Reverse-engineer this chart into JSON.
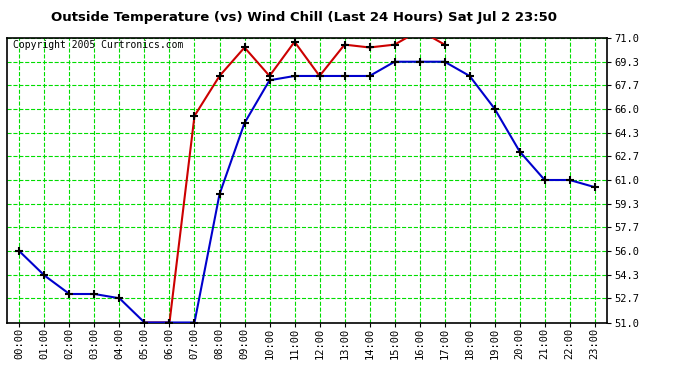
{
  "title": "Outside Temperature (vs) Wind Chill (Last 24 Hours) Sat Jul 2 23:50",
  "copyright": "Copyright 2005 Curtronics.com",
  "x_labels": [
    "00:00",
    "01:00",
    "02:00",
    "03:00",
    "04:00",
    "05:00",
    "06:00",
    "07:00",
    "08:00",
    "09:00",
    "10:00",
    "11:00",
    "12:00",
    "13:00",
    "14:00",
    "15:00",
    "16:00",
    "17:00",
    "18:00",
    "19:00",
    "20:00",
    "21:00",
    "22:00",
    "23:00"
  ],
  "temp_x": [
    5,
    6,
    7,
    8,
    9,
    10,
    11,
    12,
    13,
    14,
    15,
    16,
    17
  ],
  "temp_y": [
    51.0,
    51.0,
    65.5,
    68.3,
    70.3,
    68.3,
    70.7,
    68.3,
    70.5,
    70.3,
    70.5,
    71.5,
    70.5
  ],
  "wind_x": [
    0,
    1,
    2,
    3,
    4,
    5,
    6,
    7,
    8,
    9,
    10,
    11,
    12,
    13,
    14,
    15,
    16,
    17,
    18,
    19,
    20,
    21,
    22,
    23
  ],
  "wind_y": [
    56.0,
    54.3,
    53.0,
    53.0,
    52.7,
    51.0,
    51.0,
    51.0,
    60.0,
    65.0,
    68.0,
    68.3,
    68.3,
    68.3,
    68.3,
    69.3,
    69.3,
    69.3,
    68.3,
    66.0,
    63.0,
    61.0,
    61.0,
    60.5
  ],
  "ylim_min": 51.0,
  "ylim_max": 71.0,
  "yticks": [
    51.0,
    52.7,
    54.3,
    56.0,
    57.7,
    59.3,
    61.0,
    62.7,
    64.3,
    66.0,
    67.7,
    69.3,
    71.0
  ],
  "ytick_labels": [
    "51.0",
    "52.7",
    "54.3",
    "56.0",
    "57.7",
    "59.3",
    "61.0",
    "62.7",
    "64.3",
    "66.0",
    "67.7",
    "69.3",
    "71.0"
  ],
  "bg_color": "#ffffff",
  "grid_color": "#00dd00",
  "temp_color": "#cc0000",
  "wind_color": "#0000cc",
  "title_color": "#000000",
  "title_fontsize": 9.5,
  "copyright_fontsize": 7,
  "tick_fontsize": 7.5
}
